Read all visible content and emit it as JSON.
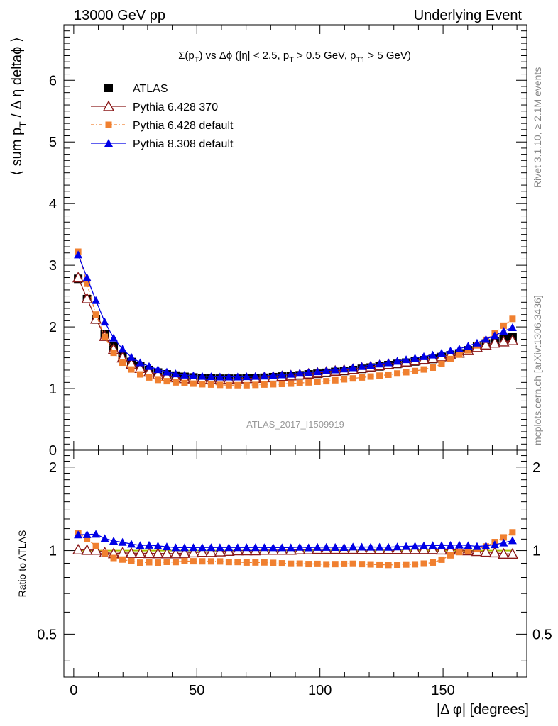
{
  "header": {
    "left": "13000 GeV pp",
    "right": "Underlying Event"
  },
  "side_labels": {
    "rivet": "Rivet 3.1.10, ≥ 2.1M events",
    "mcplots": "mcplots.cern.ch [arXiv:1306.3436]"
  },
  "chart_data": {
    "type": "scatter",
    "title": "Σ(p_T) vs Δφ (|η| < 2.5, p_T > 0.5 GeV, p_T1 > 5 GeV)",
    "watermark": "ATLAS_2017_I1509919",
    "xlabel": "|Δ φ| [degrees]",
    "ylabel": "⟨ sum p_T / Δ η deltaφ ⟩",
    "ratio_ylabel": "Ratio to ATLAS",
    "xlim": [
      -4,
      184
    ],
    "ylim": [
      0,
      6.9
    ],
    "ratio_ylim": [
      0.35,
      2.3
    ],
    "ratio_scale": "log",
    "x_ticks": [
      0,
      50,
      100,
      150
    ],
    "y_ticks": [
      0,
      1,
      2,
      3,
      4,
      5,
      6
    ],
    "ratio_ticks": [
      0.5,
      1,
      2
    ],
    "legend_position": "top-left",
    "x": [
      1.8,
      5.4,
      9.0,
      12.6,
      16.2,
      19.8,
      23.4,
      27.0,
      30.6,
      34.2,
      37.8,
      41.4,
      45.0,
      48.6,
      52.2,
      55.8,
      59.4,
      63.0,
      66.6,
      70.2,
      73.8,
      77.4,
      81.0,
      84.6,
      88.2,
      91.8,
      95.4,
      99.0,
      102.6,
      106.2,
      109.8,
      113.4,
      117.0,
      120.6,
      124.2,
      127.8,
      131.4,
      135.0,
      138.6,
      142.2,
      145.8,
      149.4,
      153.0,
      156.6,
      160.2,
      163.8,
      167.4,
      171.0,
      174.6,
      178.2
    ],
    "series": [
      {
        "name": "ATLAS",
        "color": "#000000",
        "marker": "square",
        "values": [
          2.78,
          2.45,
          2.12,
          1.88,
          1.68,
          1.53,
          1.43,
          1.36,
          1.3,
          1.26,
          1.23,
          1.21,
          1.19,
          1.18,
          1.17,
          1.165,
          1.16,
          1.16,
          1.16,
          1.165,
          1.17,
          1.175,
          1.185,
          1.195,
          1.205,
          1.215,
          1.23,
          1.24,
          1.255,
          1.27,
          1.285,
          1.3,
          1.32,
          1.34,
          1.36,
          1.38,
          1.4,
          1.42,
          1.44,
          1.46,
          1.48,
          1.51,
          1.54,
          1.57,
          1.62,
          1.68,
          1.73,
          1.77,
          1.81,
          1.83
        ]
      },
      {
        "name": "Pythia 6.428 370",
        "color": "#8b1a1a",
        "marker": "triangle-open",
        "values": [
          2.8,
          2.46,
          2.13,
          1.85,
          1.64,
          1.5,
          1.4,
          1.33,
          1.27,
          1.23,
          1.2,
          1.18,
          1.165,
          1.16,
          1.155,
          1.15,
          1.15,
          1.155,
          1.16,
          1.165,
          1.17,
          1.18,
          1.19,
          1.2,
          1.21,
          1.225,
          1.24,
          1.255,
          1.27,
          1.285,
          1.3,
          1.315,
          1.335,
          1.355,
          1.375,
          1.395,
          1.415,
          1.435,
          1.455,
          1.475,
          1.495,
          1.52,
          1.55,
          1.58,
          1.62,
          1.67,
          1.71,
          1.74,
          1.76,
          1.78
        ]
      },
      {
        "name": "Pythia 6.428 default",
        "color": "#f08030",
        "marker": "square-small",
        "values": [
          3.22,
          2.7,
          2.2,
          1.84,
          1.58,
          1.42,
          1.31,
          1.23,
          1.18,
          1.14,
          1.12,
          1.1,
          1.09,
          1.08,
          1.07,
          1.065,
          1.06,
          1.055,
          1.055,
          1.055,
          1.06,
          1.065,
          1.07,
          1.075,
          1.08,
          1.09,
          1.1,
          1.11,
          1.12,
          1.135,
          1.15,
          1.165,
          1.18,
          1.195,
          1.21,
          1.225,
          1.245,
          1.265,
          1.285,
          1.31,
          1.34,
          1.4,
          1.48,
          1.55,
          1.62,
          1.7,
          1.79,
          1.9,
          2.02,
          2.13
        ]
      },
      {
        "name": "Pythia 8.308 default",
        "color": "#0000e6",
        "marker": "triangle-filled",
        "values": [
          3.17,
          2.8,
          2.43,
          2.08,
          1.82,
          1.64,
          1.51,
          1.42,
          1.36,
          1.31,
          1.27,
          1.24,
          1.22,
          1.21,
          1.2,
          1.195,
          1.19,
          1.19,
          1.19,
          1.195,
          1.2,
          1.205,
          1.215,
          1.225,
          1.235,
          1.25,
          1.26,
          1.275,
          1.29,
          1.305,
          1.32,
          1.34,
          1.36,
          1.38,
          1.4,
          1.42,
          1.445,
          1.47,
          1.495,
          1.52,
          1.545,
          1.575,
          1.61,
          1.645,
          1.69,
          1.74,
          1.8,
          1.86,
          1.93,
          1.99
        ]
      }
    ]
  }
}
